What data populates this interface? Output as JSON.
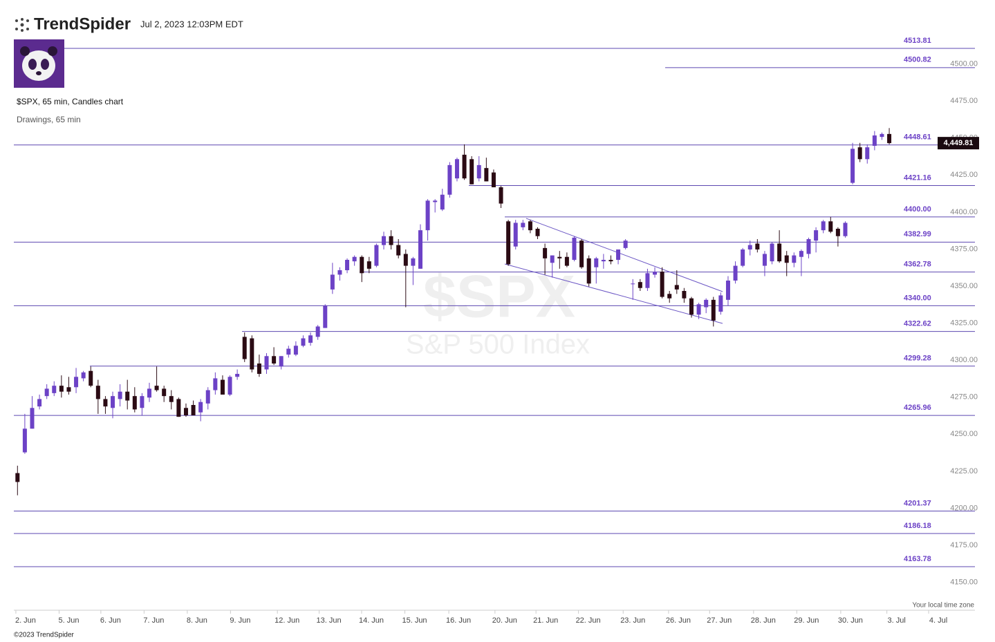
{
  "header": {
    "brand": "TrendSpider",
    "timestamp": "Jul 2, 2023 12:03PM EDT"
  },
  "footer": {
    "copyright": "©2023 TrendSpider"
  },
  "chart_data": {
    "type": "candlestick",
    "subtitle": "$SPX, 65 min, Candles chart",
    "drawings_label": "Drawings, 65 min",
    "watermark_symbol": "$SPX",
    "watermark_name": "S&P 500 Index",
    "timezone_note": "Your local time zone",
    "up_color": "#6c42c6",
    "down_color": "#2b0b14",
    "level_color": "#5b47b0",
    "open": [
      4227,
      4241,
      4257,
      4272,
      4279,
      4281,
      4286,
      4285,
      4285,
      4291,
      4296,
      4286,
      4277,
      4271,
      4277,
      4282,
      4279,
      4271,
      4278,
      4286,
      4284,
      4279,
      4277,
      4271,
      4273,
      4268,
      4274,
      4283,
      4290,
      4280,
      4292,
      4319,
      4318,
      4301,
      4297,
      4306,
      4299,
      4307,
      4307,
      4313,
      4315,
      4319,
      4325,
      4351,
      4361,
      4364,
      4370,
      4373,
      4370,
      4367,
      4381,
      4387,
      4381,
      4375,
      4367,
      4365,
      4391,
      4410,
      4405,
      4415,
      4426,
      4442,
      4439,
      4426,
      4433,
      4430,
      4420,
      4397,
      4380,
      4393,
      4397,
      4392,
      4379,
      4369,
      4373,
      4373,
      4371,
      4384,
      4372,
      4366,
      4370,
      4371,
      4371,
      4379,
      4355,
      4356,
      4352,
      4361,
      4363,
      4348,
      4354,
      4350,
      4345,
      4334,
      4339,
      4344,
      4336,
      4344,
      4357,
      4367,
      4378,
      4382,
      4367,
      4370,
      4382,
      4374,
      4369,
      4373,
      4375,
      4384,
      4391,
      4397,
      4392,
      4387,
      4423,
      4447,
      4439,
      4448,
      4454,
      4456
    ],
    "high": [
      4232,
      4267,
      4279,
      4280,
      4287,
      4289,
      4293,
      4292,
      4298,
      4296,
      4299,
      4290,
      4279,
      4282,
      4287,
      4290,
      4285,
      4281,
      4288,
      4299,
      4286,
      4283,
      4278,
      4274,
      4276,
      4277,
      4285,
      4295,
      4293,
      4293,
      4297,
      4322,
      4320,
      4307,
      4308,
      4312,
      4306,
      4313,
      4316,
      4320,
      4322,
      4327,
      4341,
      4369,
      4366,
      4372,
      4374,
      4374,
      4373,
      4382,
      4390,
      4391,
      4385,
      4378,
      4373,
      4395,
      4412,
      4412,
      4419,
      4437,
      4440,
      4449,
      4441,
      4441,
      4440,
      4432,
      4421,
      4398,
      4398,
      4398,
      4398,
      4393,
      4382,
      4374,
      4377,
      4376,
      4387,
      4385,
      4374,
      4373,
      4375,
      4374,
      4378,
      4385,
      4358,
      4358,
      4365,
      4366,
      4366,
      4350,
      4364,
      4352,
      4346,
      4342,
      4345,
      4346,
      4349,
      4360,
      4370,
      4379,
      4384,
      4385,
      4377,
      4383,
      4391,
      4377,
      4376,
      4378,
      4386,
      4393,
      4398,
      4400,
      4393,
      4397,
      4450,
      4450,
      4449,
      4458,
      4457,
      4460
    ],
    "low": [
      4212,
      4240,
      4257,
      4270,
      4277,
      4279,
      4278,
      4280,
      4281,
      4289,
      4285,
      4267,
      4267,
      4264,
      4272,
      4270,
      4268,
      4266,
      4275,
      4282,
      4275,
      4270,
      4265,
      4265,
      4266,
      4262,
      4270,
      4280,
      4280,
      4279,
      4290,
      4302,
      4295,
      4292,
      4294,
      4300,
      4297,
      4305,
      4306,
      4312,
      4313,
      4317,
      4325,
      4348,
      4357,
      4362,
      4367,
      4356,
      4362,
      4366,
      4378,
      4378,
      4372,
      4339,
      4354,
      4365,
      4384,
      4403,
      4404,
      4413,
      4424,
      4425,
      4422,
      4424,
      4424,
      4420,
      4406,
      4367,
      4378,
      4391,
      4389,
      4385,
      4361,
      4359,
      4365,
      4366,
      4370,
      4365,
      4353,
      4355,
      4365,
      4368,
      4368,
      4378,
      4344,
      4350,
      4350,
      4359,
      4345,
      4342,
      4348,
      4342,
      4332,
      4331,
      4335,
      4326,
      4334,
      4340,
      4355,
      4366,
      4374,
      4376,
      4360,
      4368,
      4369,
      4360,
      4366,
      4360,
      4372,
      4376,
      4389,
      4389,
      4380,
      4386,
      4422,
      4437,
      4436,
      4445,
      4452,
      4449
    ],
    "close": [
      4221,
      4257,
      4271,
      4277,
      4284,
      4286,
      4282,
      4282,
      4292,
      4295,
      4286,
      4277,
      4272,
      4279,
      4282,
      4276,
      4270,
      4279,
      4284,
      4283,
      4279,
      4275,
      4265,
      4266,
      4266,
      4275,
      4283,
      4291,
      4280,
      4292,
      4294,
      4304,
      4297,
      4294,
      4306,
      4301,
      4306,
      4311,
      4313,
      4318,
      4320,
      4326,
      4340,
      4361,
      4364,
      4371,
      4373,
      4362,
      4365,
      4381,
      4387,
      4381,
      4374,
      4367,
      4372,
      4391,
      4411,
      4411,
      4415,
      4435,
      4439,
      4426,
      4422,
      4435,
      4424,
      4420,
      4409,
      4368,
      4396,
      4396,
      4391,
      4387,
      4372,
      4374,
      4372,
      4367,
      4386,
      4366,
      4355,
      4372,
      4371,
      4370,
      4378,
      4384,
      4355,
      4352,
      4362,
      4363,
      4346,
      4345,
      4351,
      4345,
      4334,
      4341,
      4344,
      4330,
      4347,
      4357,
      4367,
      4378,
      4381,
      4378,
      4375,
      4382,
      4370,
      4369,
      4374,
      4377,
      4385,
      4391,
      4397,
      4390,
      4387,
      4396,
      4446,
      4439,
      4447,
      4455,
      4456,
      4449.81
    ],
    "price_tag": {
      "value": 4449.81,
      "label": "4,449.81"
    },
    "levels": [
      {
        "value": 4513.81,
        "label": "4513.81"
      },
      {
        "value": 4500.82,
        "label": "4500.82"
      },
      {
        "value": 4448.61,
        "label": "4448.61"
      },
      {
        "value": 4421.16,
        "label": "4421.16"
      },
      {
        "value": 4400,
        "label": "4400.00"
      },
      {
        "value": 4382.99,
        "label": "4382.99"
      },
      {
        "value": 4362.78,
        "label": "4362.78"
      },
      {
        "value": 4340,
        "label": "4340.00"
      },
      {
        "value": 4322.62,
        "label": "4322.62"
      },
      {
        "value": 4299.28,
        "label": "4299.28"
      },
      {
        "value": 4265.96,
        "label": "4265.96"
      },
      {
        "value": 4201.37,
        "label": "4201.37"
      },
      {
        "value": 4186.18,
        "label": "4186.18"
      },
      {
        "value": 4163.78,
        "label": "4163.78"
      }
    ],
    "ylim": [
      4133,
      4530
    ],
    "yticks": [
      {
        "value": 4150,
        "label": "4150.00"
      },
      {
        "value": 4175,
        "label": "4175.00"
      },
      {
        "value": 4200,
        "label": "4200.00"
      },
      {
        "value": 4225,
        "label": "4225.00"
      },
      {
        "value": 4250,
        "label": "4250.00"
      },
      {
        "value": 4275,
        "label": "4275.00"
      },
      {
        "value": 4300,
        "label": "4300.00"
      },
      {
        "value": 4325,
        "label": "4325.00"
      },
      {
        "value": 4350,
        "label": "4350.00"
      },
      {
        "value": 4375,
        "label": "4375.00"
      },
      {
        "value": 4400,
        "label": "4400.00"
      },
      {
        "value": 4425,
        "label": "4425.00"
      },
      {
        "value": 4450,
        "label": "4450.00"
      },
      {
        "value": 4475,
        "label": "4475.00"
      },
      {
        "value": 4500,
        "label": "4500.00"
      }
    ],
    "xlim": [
      -0.5,
      130.7
    ],
    "xticks": [
      {
        "value": 1.1,
        "label": "2. Jun"
      },
      {
        "value": 7.0,
        "label": "5. Jun"
      },
      {
        "value": 12.7,
        "label": "6. Jun"
      },
      {
        "value": 18.6,
        "label": "7. Jun"
      },
      {
        "value": 24.5,
        "label": "8. Jun"
      },
      {
        "value": 30.4,
        "label": "9. Jun"
      },
      {
        "value": 36.8,
        "label": "12. Jun"
      },
      {
        "value": 42.5,
        "label": "13. Jun"
      },
      {
        "value": 48.3,
        "label": "14. Jun"
      },
      {
        "value": 54.2,
        "label": "15. Jun"
      },
      {
        "value": 60.2,
        "label": "16. Jun"
      },
      {
        "value": 66.5,
        "label": "20. Jun"
      },
      {
        "value": 72.1,
        "label": "21. Jun"
      },
      {
        "value": 77.9,
        "label": "22. Jun"
      },
      {
        "value": 84.0,
        "label": "23. Jun"
      },
      {
        "value": 90.2,
        "label": "26. Jun"
      },
      {
        "value": 95.8,
        "label": "27. Jun"
      },
      {
        "value": 101.8,
        "label": "28. Jun"
      },
      {
        "value": 107.7,
        "label": "29. Jun"
      },
      {
        "value": 113.7,
        "label": "30. Jun"
      },
      {
        "value": 120.0,
        "label": "3. Jul"
      },
      {
        "value": 125.7,
        "label": "4. Jul"
      }
    ]
  }
}
